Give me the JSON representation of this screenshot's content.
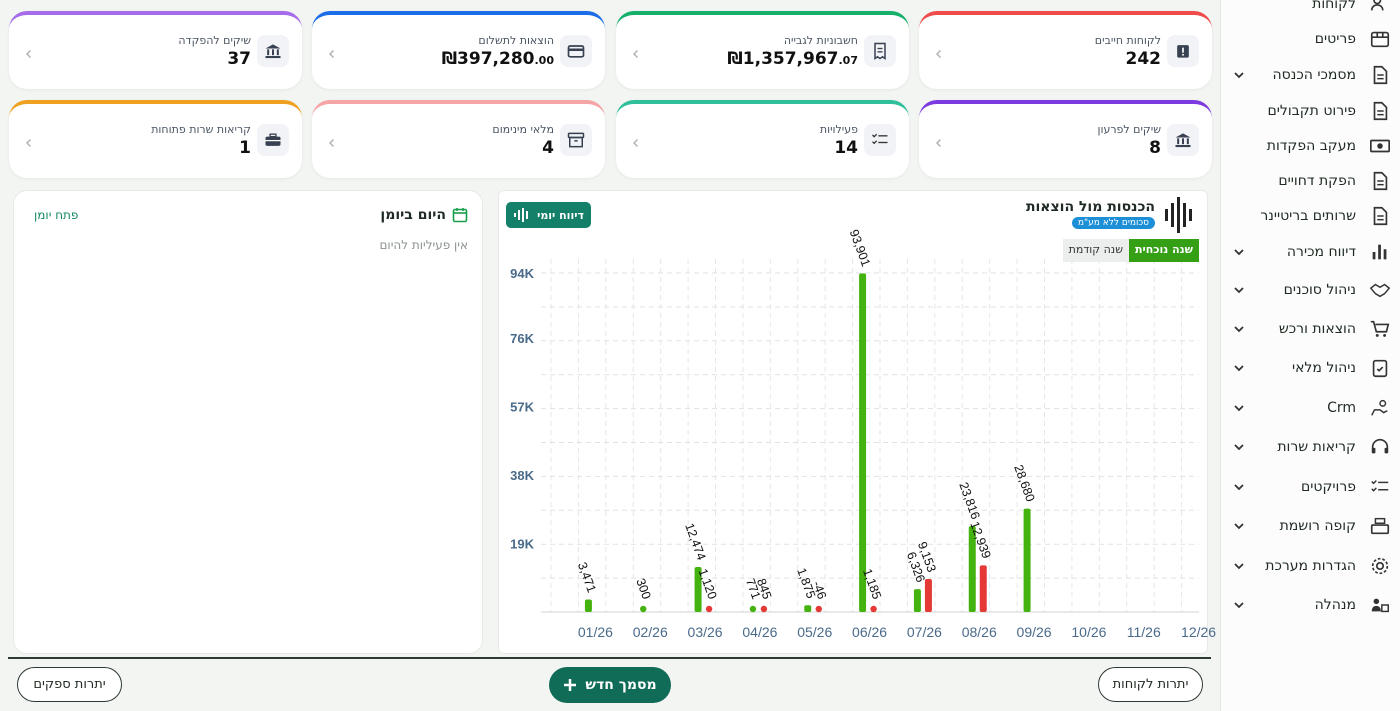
{
  "sidebar": {
    "items": [
      {
        "label": "לקוחות",
        "icon": "users-icon",
        "chevron": false
      },
      {
        "label": "פריטים",
        "icon": "box-icon",
        "chevron": false
      },
      {
        "label": "מסמכי הכנסה",
        "icon": "document-icon",
        "chevron": true
      },
      {
        "label": "פירוט תקבולים",
        "icon": "document-icon",
        "chevron": false
      },
      {
        "label": "מעקב הפקדות",
        "icon": "banknote-icon",
        "chevron": false
      },
      {
        "label": "הפקת דחויים",
        "icon": "document-icon",
        "chevron": false
      },
      {
        "label": "שרותים בריטיינר",
        "icon": "document-icon",
        "chevron": false
      },
      {
        "label": "דיווח מכירה",
        "icon": "bar-chart-icon",
        "chevron": true
      },
      {
        "label": "ניהול סוכנים",
        "icon": "handshake-icon",
        "chevron": true
      },
      {
        "label": "הוצאות ורכש",
        "icon": "cart-icon",
        "chevron": true
      },
      {
        "label": "ניהול מלאי",
        "icon": "clipboard-check-icon",
        "chevron": true
      },
      {
        "label": "Crm",
        "icon": "hand-coin-icon",
        "chevron": true
      },
      {
        "label": "קריאות שרות",
        "icon": "headset-icon",
        "chevron": true
      },
      {
        "label": "פרויקטים",
        "icon": "checklist-icon",
        "chevron": true
      },
      {
        "label": "קופה רושמת",
        "icon": "cash-register-icon",
        "chevron": true
      },
      {
        "label": "הגדרות מערכת",
        "icon": "gear-icon",
        "chevron": true
      },
      {
        "label": "מנהלה",
        "icon": "admin-users-icon",
        "chevron": true
      }
    ]
  },
  "cards": [
    {
      "label": "לקוחות חייבים",
      "value": "242",
      "icon": "alert-wallet-icon",
      "color": "#ef4b4b"
    },
    {
      "label": "חשבוניות לגבייה",
      "value": "₪1,357,967",
      "cents": ".07",
      "icon": "invoice-icon",
      "color": "#17b06b"
    },
    {
      "label": "הוצאות לתשלום",
      "value": "₪397,280",
      "cents": ".00",
      "icon": "credit-card-icon",
      "color": "#1c6ee8"
    },
    {
      "label": "שיקים להפקדה",
      "value": "37",
      "icon": "bank-icon",
      "color": "#a66be8"
    },
    {
      "label": "שיקים לפרעון",
      "value": "8",
      "icon": "bank-icon",
      "color": "#7c3ae0"
    },
    {
      "label": "פעילויות",
      "value": "14",
      "icon": "checklist-icon",
      "color": "#2fbf9b"
    },
    {
      "label": "מלאי מינימום",
      "value": "4",
      "icon": "archive-icon",
      "color": "#f5a5a5"
    },
    {
      "label": "קריאות שרות פתוחות",
      "value": "1",
      "icon": "toolbox-icon",
      "color": "#f0a020"
    }
  ],
  "diary": {
    "title": "היום ביומן",
    "empty": "אין פעיליות להיום",
    "open_link": "פתח יומן"
  },
  "chart": {
    "title": "הכנסות מול הוצאות",
    "badge": "סכומים ללא מע\"מ",
    "daily_button": "דיווח יומי",
    "toggle_current": "שנה נוכחית",
    "toggle_previous": "שנה קודמת"
  },
  "chart_data": {
    "type": "bar",
    "categories": [
      "01/26",
      "02/26",
      "03/26",
      "04/26",
      "05/26",
      "06/26",
      "07/26",
      "08/26",
      "09/26",
      "10/26",
      "11/26",
      "12/26"
    ],
    "series": [
      {
        "values": [
          3471,
          300,
          12474,
          771,
          1875,
          93901,
          6326,
          23816,
          28680,
          0,
          0,
          0
        ],
        "labels": [
          "3,471",
          "300",
          "12,474",
          "771",
          "1,875",
          "93,901",
          "6,326",
          "23,816",
          "28,680",
          "",
          "",
          ""
        ],
        "color": "#44b20f"
      },
      {
        "values": [
          0,
          0,
          1120,
          845,
          -46,
          1185,
          9153,
          12939,
          0,
          0,
          0,
          0
        ],
        "labels": [
          "",
          "",
          "1,120",
          "845",
          "-46",
          "1,185",
          "9,153",
          "12,939",
          "",
          "",
          "",
          ""
        ],
        "color": "#e53935"
      }
    ],
    "yticks": [
      "94K",
      "76K",
      "57K",
      "38K",
      "19K"
    ],
    "ytick_values": [
      94000,
      76000,
      57000,
      38000,
      19000
    ],
    "ylim": [
      0,
      94000
    ],
    "grid": true
  },
  "bottom": {
    "customers_balance": "יתרות לקוחות",
    "new_document": "מסמך חדש",
    "suppliers_balance": "יתרות ספקים"
  }
}
